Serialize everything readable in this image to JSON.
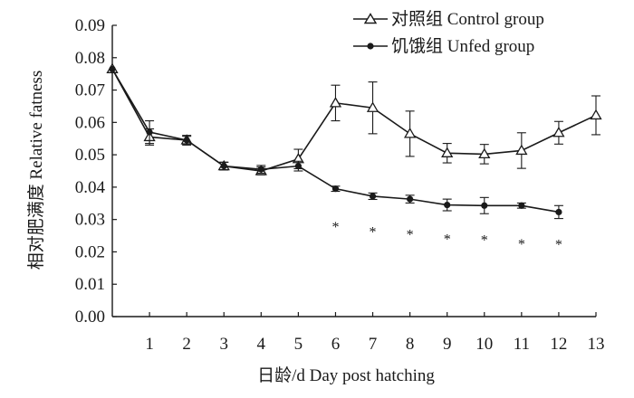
{
  "chart_data": {
    "type": "line",
    "xlabel": "日龄/d Day post hatching",
    "ylabel": "相对肥满度 Relative fatness",
    "x_ticks": [
      "1",
      "2",
      "3",
      "4",
      "5",
      "6",
      "7",
      "8",
      "9",
      "10",
      "11",
      "12",
      "13"
    ],
    "y_ticks": [
      "0.00",
      "0.01",
      "0.02",
      "0.03",
      "0.04",
      "0.05",
      "0.06",
      "0.07",
      "0.08",
      "0.09"
    ],
    "xlim": [
      0,
      13
    ],
    "ylim": [
      0,
      0.09
    ],
    "grid": false,
    "legend_position": "top-right",
    "series": [
      {
        "name": "对照组 Control group",
        "marker": "open-triangle",
        "x": [
          0,
          1,
          2,
          3,
          4,
          5,
          6,
          7,
          8,
          9,
          10,
          11,
          12,
          13
        ],
        "y": [
          0.0765,
          0.0555,
          0.0545,
          0.0465,
          0.045,
          0.0487,
          0.066,
          0.0645,
          0.0565,
          0.0505,
          0.0502,
          0.0513,
          0.0568,
          0.0622
        ],
        "err": [
          0,
          0.0025,
          0.0015,
          0.0012,
          0.0012,
          0.003,
          0.0055,
          0.008,
          0.007,
          0.003,
          0.003,
          0.0055,
          0.0035,
          0.006
        ]
      },
      {
        "name": "饥饿组 Unfed group",
        "marker": "filled-circle",
        "x": [
          0,
          1,
          2,
          3,
          4,
          5,
          6,
          7,
          8,
          9,
          10,
          11,
          12
        ],
        "y": [
          0.0765,
          0.057,
          0.0545,
          0.0465,
          0.0455,
          0.0465,
          0.0395,
          0.0372,
          0.0363,
          0.0345,
          0.0343,
          0.0343,
          0.0323
        ],
        "err": [
          0,
          0.0035,
          0.0012,
          0.0012,
          0.0012,
          0.0015,
          0.0008,
          0.001,
          0.0012,
          0.0018,
          0.0025,
          0.0008,
          0.002
        ]
      }
    ],
    "significance": {
      "symbol": "*",
      "x": [
        6,
        7,
        8,
        9,
        10,
        11,
        12
      ],
      "y": [
        0.0285,
        0.027,
        0.0262,
        0.0248,
        0.0245,
        0.0232,
        0.023
      ]
    },
    "colors": {
      "line": "#1a1a1a",
      "axis": "#1a1a1a",
      "background": "#ffffff"
    }
  }
}
